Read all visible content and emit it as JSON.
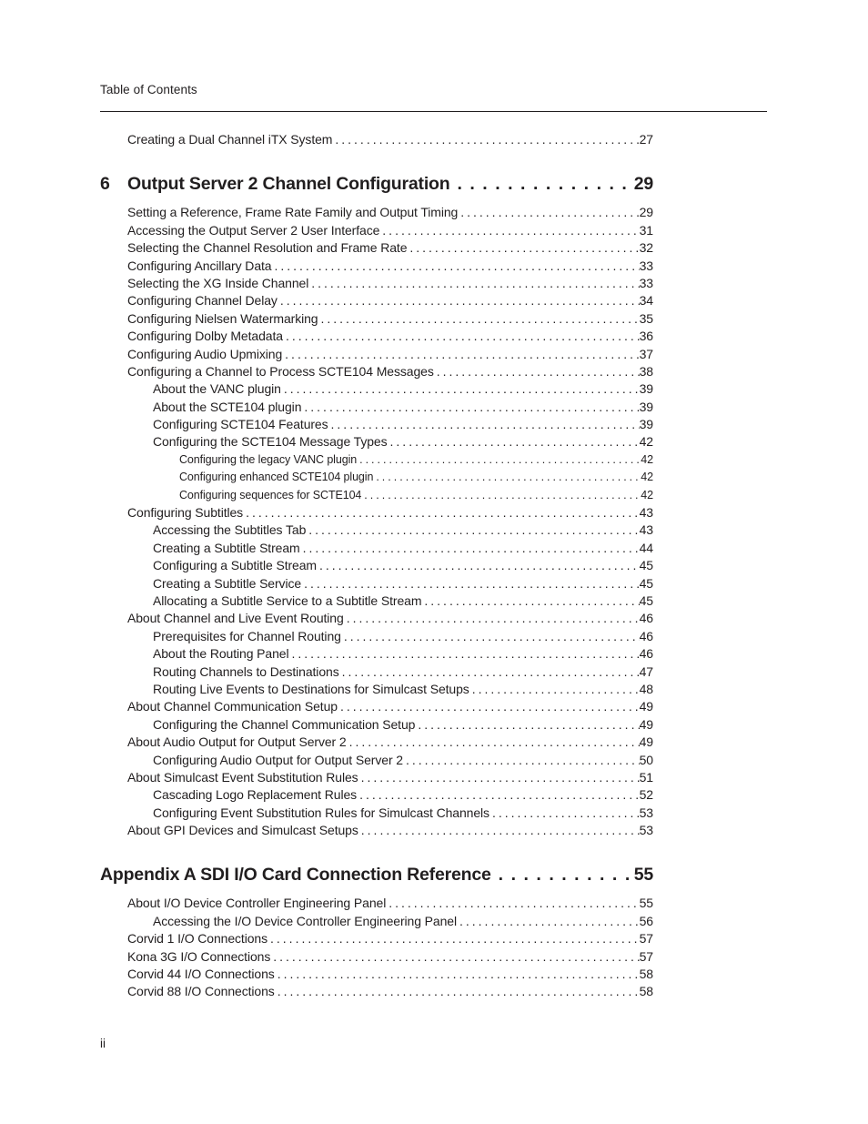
{
  "page": {
    "header": "Table of Contents",
    "footer_page_number": "ii"
  },
  "colors": {
    "text": "#211e1f",
    "background": "#ffffff"
  },
  "toc": {
    "pre_entries": [
      {
        "level": 1,
        "title": "Creating a Dual Channel iTX System",
        "page": "27"
      }
    ],
    "sections": [
      {
        "number": "6",
        "title": "Output Server 2 Channel Configuration",
        "page": "29",
        "entries": [
          {
            "level": 1,
            "title": "Setting a Reference, Frame Rate Family and Output Timing",
            "page": "29"
          },
          {
            "level": 1,
            "title": "Accessing the Output Server 2 User Interface",
            "page": "31"
          },
          {
            "level": 1,
            "title": "Selecting the Channel Resolution and Frame Rate",
            "page": "32"
          },
          {
            "level": 1,
            "title": "Configuring Ancillary Data",
            "page": "33"
          },
          {
            "level": 1,
            "title": "Selecting the XG Inside Channel",
            "page": "33"
          },
          {
            "level": 1,
            "title": "Configuring Channel Delay",
            "page": "34"
          },
          {
            "level": 1,
            "title": "Configuring Nielsen Watermarking",
            "page": "35"
          },
          {
            "level": 1,
            "title": "Configuring Dolby Metadata",
            "page": "36"
          },
          {
            "level": 1,
            "title": "Configuring Audio Upmixing",
            "page": "37"
          },
          {
            "level": 1,
            "title": "Configuring a Channel to Process SCTE104 Messages",
            "page": "38"
          },
          {
            "level": 2,
            "title": "About the VANC plugin",
            "page": "39"
          },
          {
            "level": 2,
            "title": "About the SCTE104 plugin",
            "page": "39"
          },
          {
            "level": 2,
            "title": "Configuring SCTE104 Features",
            "page": "39"
          },
          {
            "level": 2,
            "title": "Configuring the SCTE104 Message Types",
            "page": "42"
          },
          {
            "level": 3,
            "title": "Configuring the legacy VANC plugin",
            "page": "42"
          },
          {
            "level": 3,
            "title": "Configuring enhanced SCTE104 plugin",
            "page": "42"
          },
          {
            "level": 3,
            "title": "Configuring sequences for SCTE104",
            "page": "42"
          },
          {
            "level": 1,
            "title": "Configuring Subtitles",
            "page": "43"
          },
          {
            "level": 2,
            "title": "Accessing the Subtitles Tab",
            "page": "43"
          },
          {
            "level": 2,
            "title": "Creating a Subtitle Stream",
            "page": "44"
          },
          {
            "level": 2,
            "title": "Configuring a Subtitle Stream",
            "page": "45"
          },
          {
            "level": 2,
            "title": "Creating a Subtitle Service",
            "page": "45"
          },
          {
            "level": 2,
            "title": "Allocating a Subtitle Service to a Subtitle Stream",
            "page": "45"
          },
          {
            "level": 1,
            "title": "About Channel and Live Event Routing",
            "page": "46"
          },
          {
            "level": 2,
            "title": "Prerequisites for Channel Routing",
            "page": "46"
          },
          {
            "level": 2,
            "title": "About the Routing Panel",
            "page": "46"
          },
          {
            "level": 2,
            "title": "Routing Channels to Destinations",
            "page": "47"
          },
          {
            "level": 2,
            "title": "Routing Live Events to Destinations for Simulcast Setups",
            "page": "48"
          },
          {
            "level": 1,
            "title": "About Channel Communication Setup",
            "page": "49"
          },
          {
            "level": 2,
            "title": "Configuring the Channel Communication Setup",
            "page": "49"
          },
          {
            "level": 1,
            "title": "About Audio Output for Output Server 2",
            "page": "49"
          },
          {
            "level": 2,
            "title": "Configuring Audio Output for Output Server 2",
            "page": "50"
          },
          {
            "level": 1,
            "title": "About Simulcast Event Substitution Rules",
            "page": "51"
          },
          {
            "level": 2,
            "title": "Cascading Logo Replacement Rules",
            "page": "52"
          },
          {
            "level": 2,
            "title": "Configuring Event Substitution Rules for Simulcast Channels",
            "page": "53"
          },
          {
            "level": 1,
            "title": "About GPI Devices and Simulcast Setups",
            "page": "53"
          }
        ]
      },
      {
        "number": "",
        "title": "Appendix A SDI I/O Card Connection Reference ",
        "page": "55",
        "entries": [
          {
            "level": 1,
            "title": "About I/O Device Controller Engineering Panel",
            "page": "55"
          },
          {
            "level": 2,
            "title": "Accessing the I/O Device Controller Engineering Panel",
            "page": "56"
          },
          {
            "level": 1,
            "title": "Corvid 1 I/O Connections",
            "page": "57"
          },
          {
            "level": 1,
            "title": "Kona 3G I/O Connections",
            "page": "57"
          },
          {
            "level": 1,
            "title": "Corvid 44 I/O Connections",
            "page": "58"
          },
          {
            "level": 1,
            "title": "Corvid 88 I/O Connections",
            "page": "58"
          }
        ]
      }
    ]
  }
}
